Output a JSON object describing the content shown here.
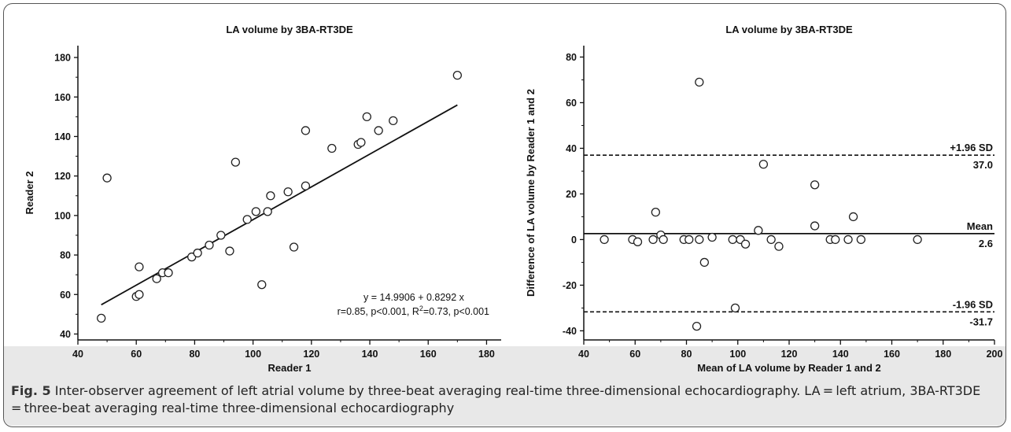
{
  "caption": {
    "label": "Fig. 5",
    "text": " Inter-observer agreement of left atrial volume by three-beat averaging real-time three-dimensional echocardiography. LA = left atrium, 3BA-RT3DE = three-beat averaging real-time three-dimensional echocardiography"
  },
  "chart_data": [
    {
      "type": "scatter",
      "title": "LA volume by 3BA-RT3DE",
      "xlabel": "Reader 1",
      "ylabel": "Reader 2",
      "xlim": [
        40,
        185
      ],
      "ylim": [
        37,
        186
      ],
      "xticks": [
        40,
        60,
        80,
        100,
        120,
        140,
        160,
        180
      ],
      "yticks": [
        40,
        60,
        80,
        100,
        120,
        140,
        160,
        180
      ],
      "points": [
        [
          48,
          48
        ],
        [
          50,
          119
        ],
        [
          60,
          59
        ],
        [
          61,
          60
        ],
        [
          61,
          74
        ],
        [
          67,
          68
        ],
        [
          69,
          71
        ],
        [
          71,
          71
        ],
        [
          79,
          79
        ],
        [
          81,
          81
        ],
        [
          85,
          85
        ],
        [
          89,
          90
        ],
        [
          92,
          82
        ],
        [
          94,
          127
        ],
        [
          98,
          98
        ],
        [
          101,
          102
        ],
        [
          103,
          65
        ],
        [
          105,
          102
        ],
        [
          106,
          110
        ],
        [
          112,
          112
        ],
        [
          114,
          84
        ],
        [
          118,
          115
        ],
        [
          118,
          143
        ],
        [
          127,
          134
        ],
        [
          136,
          136
        ],
        [
          137,
          137
        ],
        [
          139,
          150
        ],
        [
          143,
          143
        ],
        [
          148,
          148
        ],
        [
          170,
          171
        ]
      ],
      "regression": {
        "intercept": 14.9906,
        "slope": 0.8292,
        "x_range": [
          48,
          170
        ]
      },
      "annotations": [
        "y = 14.9906 + 0.8292 x",
        "r=0.85, p<0.001, R",
        "2",
        "=0.73, p<0.001"
      ],
      "grid": false
    },
    {
      "type": "scatter",
      "title": "LA volume by 3BA-RT3DE",
      "xlabel": "Mean of LA volume by Reader 1 and 2",
      "ylabel": "Difference of LA volume by Reader 1 and 2",
      "xlim": [
        40,
        200
      ],
      "ylim": [
        -44,
        85
      ],
      "xticks": [
        40,
        60,
        80,
        100,
        120,
        140,
        160,
        180,
        200
      ],
      "yticks": [
        -40,
        -20,
        0,
        20,
        40,
        60,
        80
      ],
      "points": [
        [
          48,
          0
        ],
        [
          59,
          0
        ],
        [
          61,
          -1
        ],
        [
          67,
          0
        ],
        [
          68,
          12
        ],
        [
          70,
          2
        ],
        [
          71,
          0
        ],
        [
          79,
          0
        ],
        [
          81,
          0
        ],
        [
          84,
          -38
        ],
        [
          85,
          0
        ],
        [
          85,
          69
        ],
        [
          87,
          -10
        ],
        [
          90,
          1
        ],
        [
          98,
          0
        ],
        [
          99,
          -30
        ],
        [
          101,
          0
        ],
        [
          103,
          -2
        ],
        [
          108,
          4
        ],
        [
          110,
          33
        ],
        [
          113,
          0
        ],
        [
          116,
          -3
        ],
        [
          130,
          6
        ],
        [
          130,
          24
        ],
        [
          136,
          0
        ],
        [
          138,
          0
        ],
        [
          143,
          0
        ],
        [
          145,
          10
        ],
        [
          148,
          0
        ],
        [
          170,
          0
        ]
      ],
      "reference_lines": [
        {
          "name": "+1.96 SD",
          "value": 37.0,
          "value_label": "37.0",
          "style": "dashed"
        },
        {
          "name": "Mean",
          "value": 2.6,
          "value_label": "2.6",
          "style": "solid"
        },
        {
          "name": "-1.96 SD",
          "value": -31.7,
          "value_label": "-31.7",
          "style": "dashed"
        }
      ],
      "grid": false
    }
  ]
}
